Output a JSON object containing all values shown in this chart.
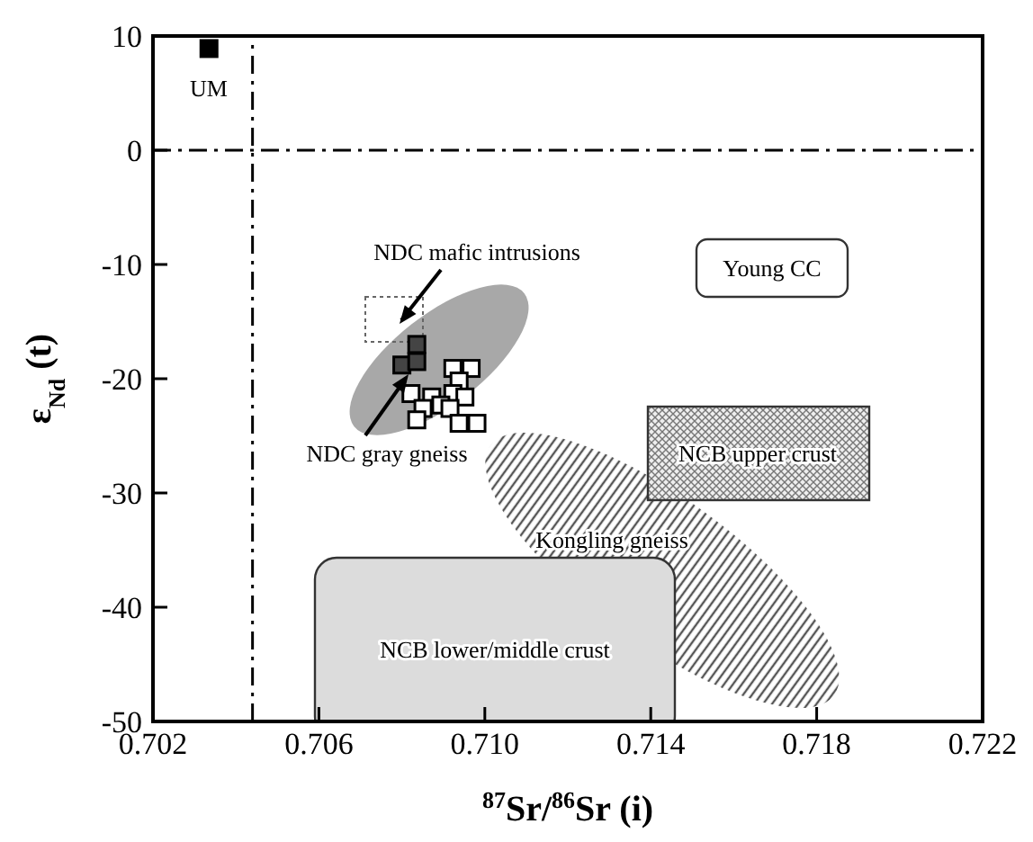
{
  "chart_data": {
    "type": "scatter",
    "xlabel": "$^{87}$Sr/$^{86}$Sr (i)",
    "ylabel": "ε$_{Nd}$ (t)",
    "series": [
      {
        "color": "#000000",
        "x": [
          0.70335
        ],
        "values": [
          8.9
        ]
      },
      {
        "color": "#444444",
        "x": [
          0.70836,
          0.708,
          0.70836
        ],
        "values": [
          -17.0,
          -18.8,
          -18.5
        ]
      },
      {
        "color": "#ffffff",
        "x": [
          0.70923,
          0.70967,
          0.70938,
          0.70822,
          0.70872,
          0.70923,
          0.70952,
          0.70851,
          0.70894,
          0.70916,
          0.70836,
          0.70938,
          0.70981
        ],
        "values": [
          -19.1,
          -19.1,
          -20.2,
          -21.3,
          -21.6,
          -21.3,
          -21.6,
          -22.6,
          -22.3,
          -22.6,
          -23.6,
          -23.9,
          -23.9
        ]
      }
    ],
    "xlim": [
      0.702,
      0.722
    ],
    "xticks": [
      0.702,
      0.706,
      {
        "value": 0.71,
        "label": "0.710"
      },
      0.714,
      0.718,
      0.722
    ],
    "ylim": [
      -50,
      10
    ],
    "yticks": [
      -50,
      -40,
      -30,
      -20,
      -10,
      0,
      10
    ],
    "ref_lines": [
      {
        "axis": "x",
        "value": 0.7044,
        "line_style": "dashed",
        "color": "#000000"
      },
      {
        "axis": "y",
        "value": 0,
        "line_style": "dashed",
        "color": "#000000"
      }
    ],
    "marker": "square",
    "grid": false,
    "legend": false,
    "annotations": [
      "UM",
      "NDC mafic intrusions",
      "NDC gray gneiss",
      "Young CC",
      "NCB upper crust",
      "Kongling gneiss",
      "NCB lower/middle crust"
    ]
  }
}
